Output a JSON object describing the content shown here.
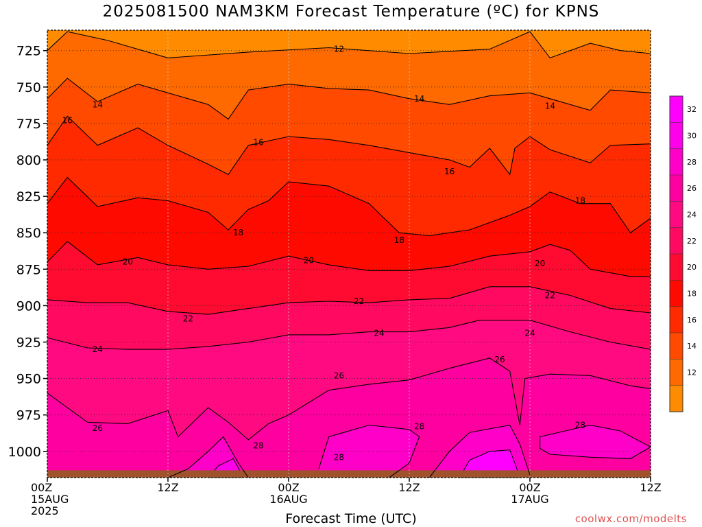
{
  "chart_data": {
    "type": "contour",
    "title": "2025081500 NAM3KM Forecast Temperature (ºC) for KPNS",
    "xlabel": "Forecast Time (UTC)",
    "ylabel": "",
    "credit": "coolwx.com/modelts",
    "x_ticks": [
      {
        "hour": 0,
        "lines": [
          "00Z",
          "15AUG",
          "2025"
        ]
      },
      {
        "hour": 12,
        "lines": [
          "12Z"
        ]
      },
      {
        "hour": 24,
        "lines": [
          "00Z",
          "16AUG"
        ]
      },
      {
        "hour": 36,
        "lines": [
          "12Z"
        ]
      },
      {
        "hour": 48,
        "lines": [
          "00Z",
          "17AUG"
        ]
      },
      {
        "hour": 60,
        "lines": [
          "12Z"
        ]
      }
    ],
    "xlim_hours": [
      0,
      60
    ],
    "y_ticks": [
      725,
      750,
      775,
      800,
      825,
      850,
      875,
      900,
      925,
      950,
      975,
      1000
    ],
    "ylim_hpa": [
      711,
      1018
    ],
    "surface_pressure_hpa": 1013,
    "colorbar": {
      "levels": [
        10,
        12,
        14,
        16,
        18,
        20,
        22,
        24,
        26,
        28,
        30,
        32,
        34
      ],
      "labels": [
        "12",
        "14",
        "16",
        "18",
        "20",
        "22",
        "24",
        "26",
        "28",
        "30",
        "32"
      ],
      "colors": [
        "#ff8c00",
        "#ff6a00",
        "#ff4a00",
        "#ff2a00",
        "#ff0a00",
        "#ff0a30",
        "#ff0a60",
        "#ff0a80",
        "#ff00a0",
        "#ff00c8",
        "#ff00ea",
        "#ff00ff"
      ]
    },
    "contours": [
      {
        "label": "12",
        "level": 12,
        "points": [
          [
            0,
            725
          ],
          [
            2,
            712
          ],
          [
            6,
            718
          ],
          [
            12,
            730
          ],
          [
            20,
            726
          ],
          [
            28,
            723
          ],
          [
            36,
            727
          ],
          [
            44,
            724
          ],
          [
            48,
            712
          ],
          [
            50,
            730
          ],
          [
            54,
            720
          ],
          [
            57,
            725
          ],
          [
            60,
            727
          ]
        ],
        "label_at": [
          [
            29,
            724
          ]
        ]
      },
      {
        "label": "14",
        "level": 14,
        "points": [
          [
            0,
            758
          ],
          [
            2,
            744
          ],
          [
            5,
            760
          ],
          [
            9,
            748
          ],
          [
            12,
            754
          ],
          [
            16,
            762
          ],
          [
            18,
            772
          ],
          [
            20,
            752
          ],
          [
            24,
            748
          ],
          [
            28,
            751
          ],
          [
            32,
            752
          ],
          [
            36,
            758
          ],
          [
            40,
            762
          ],
          [
            44,
            756
          ],
          [
            48,
            754
          ],
          [
            50,
            758
          ],
          [
            54,
            766
          ],
          [
            56,
            752
          ],
          [
            60,
            754
          ]
        ],
        "label_at": [
          [
            5,
            762
          ],
          [
            37,
            758
          ],
          [
            50,
            763
          ]
        ]
      },
      {
        "label": "16",
        "level": 16,
        "points": [
          [
            0,
            790
          ],
          [
            2,
            770
          ],
          [
            5,
            790
          ],
          [
            9,
            778
          ],
          [
            12,
            790
          ],
          [
            16,
            803
          ],
          [
            18,
            810
          ],
          [
            20,
            790
          ],
          [
            24,
            784
          ],
          [
            28,
            786
          ],
          [
            32,
            790
          ],
          [
            36,
            795
          ],
          [
            40,
            800
          ],
          [
            42,
            805
          ],
          [
            44,
            792
          ],
          [
            46,
            810
          ],
          [
            46.5,
            792
          ],
          [
            48,
            784
          ],
          [
            50,
            793
          ],
          [
            54,
            802
          ],
          [
            56,
            790
          ],
          [
            60,
            789
          ]
        ],
        "label_at": [
          [
            2,
            773
          ],
          [
            21,
            788
          ],
          [
            40,
            808
          ]
        ]
      },
      {
        "label": "18",
        "level": 18,
        "points": [
          [
            0,
            830
          ],
          [
            2,
            812
          ],
          [
            5,
            832
          ],
          [
            9,
            826
          ],
          [
            12,
            828
          ],
          [
            16,
            836
          ],
          [
            18,
            848
          ],
          [
            20,
            834
          ],
          [
            22,
            828
          ],
          [
            24,
            815
          ],
          [
            28,
            818
          ],
          [
            32,
            830
          ],
          [
            35,
            850
          ],
          [
            38,
            852
          ],
          [
            42,
            848
          ],
          [
            46,
            838
          ],
          [
            48,
            832
          ],
          [
            50,
            822
          ],
          [
            53,
            830
          ],
          [
            56,
            830
          ],
          [
            58,
            850
          ],
          [
            60,
            840
          ]
        ],
        "label_at": [
          [
            19,
            850
          ],
          [
            35,
            855
          ],
          [
            53,
            828
          ]
        ]
      },
      {
        "label": "20",
        "level": 20,
        "points": [
          [
            0,
            870
          ],
          [
            2,
            856
          ],
          [
            5,
            872
          ],
          [
            9,
            867
          ],
          [
            12,
            872
          ],
          [
            16,
            875
          ],
          [
            20,
            873
          ],
          [
            24,
            866
          ],
          [
            28,
            872
          ],
          [
            32,
            876
          ],
          [
            36,
            876
          ],
          [
            40,
            873
          ],
          [
            44,
            866
          ],
          [
            48,
            863
          ],
          [
            50,
            858
          ],
          [
            52,
            862
          ],
          [
            54,
            875
          ],
          [
            58,
            880
          ],
          [
            60,
            880
          ]
        ],
        "label_at": [
          [
            8,
            870
          ],
          [
            26,
            869
          ],
          [
            49,
            871
          ]
        ]
      },
      {
        "label": "22",
        "level": 22,
        "points": [
          [
            0,
            896
          ],
          [
            4,
            898
          ],
          [
            8,
            898
          ],
          [
            12,
            904
          ],
          [
            16,
            906
          ],
          [
            20,
            902
          ],
          [
            24,
            898
          ],
          [
            28,
            897
          ],
          [
            32,
            898
          ],
          [
            36,
            896
          ],
          [
            40,
            895
          ],
          [
            44,
            887
          ],
          [
            48,
            887
          ],
          [
            52,
            893
          ],
          [
            56,
            902
          ],
          [
            60,
            905
          ]
        ],
        "label_at": [
          [
            14,
            909
          ],
          [
            31,
            897
          ],
          [
            50,
            893
          ]
        ]
      },
      {
        "label": "24",
        "level": 24,
        "points": [
          [
            0,
            922
          ],
          [
            4,
            929
          ],
          [
            8,
            930
          ],
          [
            12,
            930
          ],
          [
            16,
            928
          ],
          [
            20,
            925
          ],
          [
            24,
            920
          ],
          [
            28,
            920
          ],
          [
            32,
            918
          ],
          [
            36,
            918
          ],
          [
            40,
            915
          ],
          [
            43,
            910
          ],
          [
            48,
            910
          ],
          [
            52,
            918
          ],
          [
            56,
            925
          ],
          [
            60,
            930
          ]
        ],
        "label_at": [
          [
            5,
            930
          ],
          [
            33,
            919
          ],
          [
            48,
            919
          ]
        ]
      },
      {
        "label": "26",
        "level": 26,
        "points": [
          [
            0,
            960
          ],
          [
            4,
            980
          ],
          [
            8,
            981
          ],
          [
            12,
            972
          ],
          [
            13,
            990
          ],
          [
            16,
            970
          ],
          [
            18,
            980
          ],
          [
            20,
            992
          ],
          [
            22,
            981
          ],
          [
            24,
            975
          ],
          [
            28,
            958
          ],
          [
            32,
            954
          ],
          [
            36,
            951
          ],
          [
            40,
            943
          ],
          [
            44,
            936
          ],
          [
            46,
            945
          ],
          [
            47,
            982
          ],
          [
            47.5,
            950
          ],
          [
            50,
            947
          ],
          [
            54,
            948
          ],
          [
            58,
            955
          ],
          [
            60,
            957
          ]
        ],
        "label_at": [
          [
            5,
            984
          ],
          [
            29,
            948
          ],
          [
            45,
            937
          ]
        ]
      },
      {
        "label": "28",
        "level": 28,
        "points": [
          [
            12,
            1018
          ],
          [
            14,
            1012
          ],
          [
            16,
            1000
          ],
          [
            17.5,
            990
          ],
          [
            19,
            1008
          ],
          [
            20,
            1018
          ]
        ],
        "label_at": [
          [
            21,
            996
          ]
        ]
      },
      {
        "label": "28",
        "level": 28,
        "points": [
          [
            27,
            1012
          ],
          [
            28,
            990
          ],
          [
            32,
            982
          ],
          [
            36,
            985
          ],
          [
            37,
            990
          ],
          [
            36,
            1008
          ],
          [
            34,
            1018
          ]
        ],
        "label_at": [
          [
            37,
            983
          ]
        ]
      },
      {
        "label": "28",
        "level": 28,
        "points": [
          [
            38,
            1018
          ],
          [
            40,
            1000
          ],
          [
            42,
            987
          ],
          [
            46,
            982
          ],
          [
            47,
            995
          ],
          [
            48,
            1016
          ]
        ],
        "label_at": [
          [
            29,
            1004
          ]
        ]
      },
      {
        "label": "28",
        "level": 28,
        "points": [
          [
            49,
            990
          ],
          [
            54,
            982
          ],
          [
            57,
            986
          ],
          [
            60,
            997
          ],
          [
            58,
            1005
          ],
          [
            54,
            1004
          ],
          [
            50,
            1002
          ],
          [
            49,
            998
          ],
          [
            49,
            990
          ]
        ],
        "label_at": [
          [
            53,
            982
          ]
        ]
      }
    ],
    "bands": [
      {
        "color": "#ff8c00",
        "top": "plot_top",
        "bottom": 0
      },
      {
        "color": "#ff6a00",
        "top": 0,
        "bottom": 1
      },
      {
        "color": "#ff4a00",
        "top": 1,
        "bottom": 2
      },
      {
        "color": "#ff2a00",
        "top": 2,
        "bottom": 3
      },
      {
        "color": "#ff0a00",
        "top": 3,
        "bottom": 4
      },
      {
        "color": "#ff0a30",
        "top": 4,
        "bottom": 5
      },
      {
        "color": "#ff0a60",
        "top": 5,
        "bottom": 6
      },
      {
        "color": "#ff0a80",
        "top": 6,
        "bottom": 7
      },
      {
        "color": "#ff00a0",
        "top": 7,
        "bottom": "plot_bottom"
      }
    ],
    "grid": true
  }
}
